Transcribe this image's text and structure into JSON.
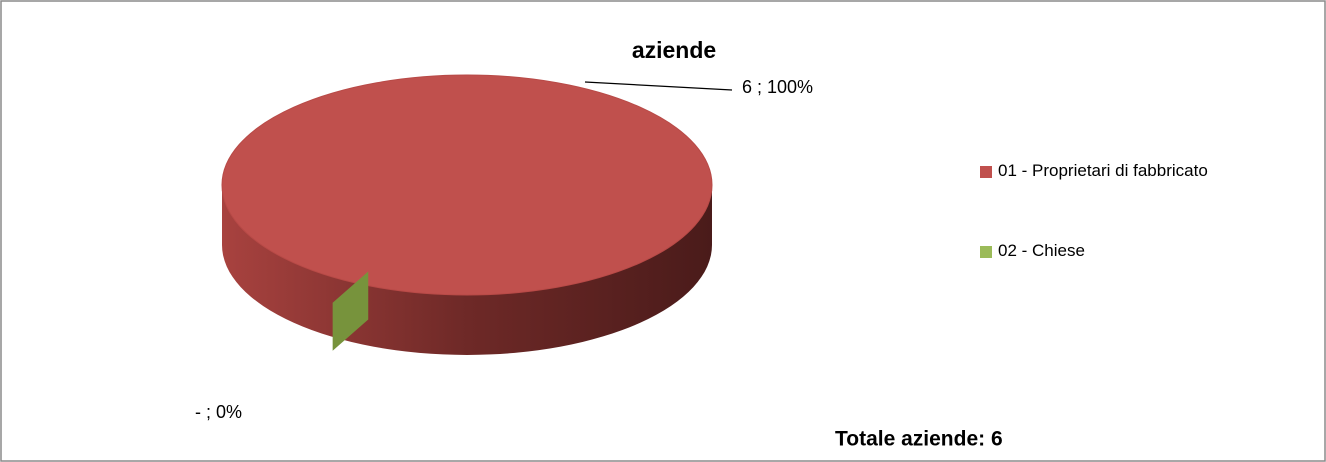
{
  "chart_data": {
    "type": "pie",
    "title": "aziende",
    "categories": [
      "01 - Proprietari di fabbricato",
      "02 - Chiese"
    ],
    "values": [
      6,
      0
    ],
    "value_labels": [
      "6 ; 100%",
      "- ; 0%"
    ],
    "colors": [
      "#c0504d",
      "#77933c"
    ],
    "legend": "right",
    "annotation": "Totale aziende: 6"
  }
}
